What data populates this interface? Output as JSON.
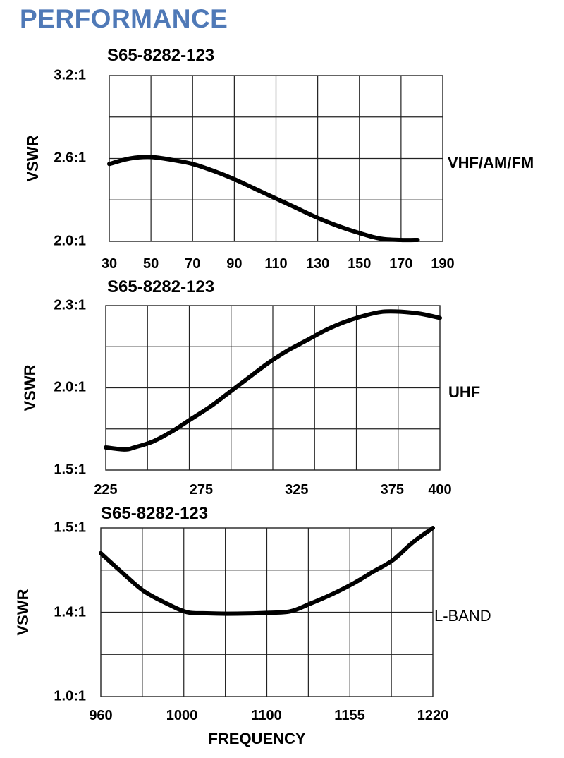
{
  "page": {
    "title": "PERFORMANCE"
  },
  "chart_data": [
    {
      "type": "line",
      "title": "S65-8282-123",
      "ylabel": "VSWR",
      "band_label": "VHF/AM/FM",
      "xlabel": "",
      "x_ticks": [
        "30",
        "50",
        "70",
        "90",
        "110",
        "130",
        "150",
        "170",
        "190"
      ],
      "y_ticks": [
        "2.0:1",
        "2.6:1",
        "3.2:1"
      ],
      "xlim": [
        30,
        190
      ],
      "ylim": [
        2.0,
        3.2
      ],
      "grid": true,
      "series": [
        {
          "x": [
            30,
            40,
            50,
            60,
            70,
            80,
            90,
            100,
            110,
            120,
            130,
            140,
            150,
            160,
            170,
            178
          ],
          "y": [
            2.56,
            2.6,
            2.61,
            2.59,
            2.56,
            2.51,
            2.45,
            2.38,
            2.31,
            2.24,
            2.17,
            2.11,
            2.06,
            2.02,
            2.01,
            2.01
          ]
        }
      ]
    },
    {
      "type": "line",
      "title": "S65-8282-123",
      "ylabel": "VSWR",
      "band_label": "UHF",
      "xlabel": "",
      "x_ticks": [
        "225",
        "275",
        "325",
        "375",
        "400"
      ],
      "y_ticks": [
        "1.5:1",
        "2.0:1",
        "2.3:1"
      ],
      "x_tick_values": [
        225,
        275,
        325,
        375,
        400
      ],
      "xlim": [
        225,
        400
      ],
      "ylim": [
        1.5,
        2.3
      ],
      "grid": true,
      "series": [
        {
          "x": [
            225,
            235,
            240,
            250,
            260,
            270,
            280,
            290,
            300,
            310,
            320,
            330,
            340,
            350,
            360,
            370,
            380,
            390,
            400
          ],
          "y": [
            1.61,
            1.6,
            1.61,
            1.64,
            1.69,
            1.75,
            1.81,
            1.88,
            1.95,
            2.02,
            2.08,
            2.13,
            2.18,
            2.22,
            2.25,
            2.27,
            2.27,
            2.26,
            2.24
          ]
        }
      ]
    },
    {
      "type": "line",
      "title": "S65-8282-123",
      "ylabel": "VSWR",
      "band_label": "L-BAND",
      "xlabel": "FREQUENCY",
      "x_ticks": [
        "960",
        "1000",
        "1100",
        "1155",
        "1220"
      ],
      "y_ticks": [
        "1.0:1",
        "1.4:1",
        "1.5:1"
      ],
      "x_tick_positions": [
        0,
        0.25,
        0.5,
        0.75,
        1
      ],
      "x": [
        0,
        0.07,
        0.13,
        0.2,
        0.26,
        0.32,
        0.38,
        0.44,
        0.5,
        0.57,
        0.63,
        0.7,
        0.76,
        0.82,
        0.88,
        0.94,
        1.0
      ],
      "y": [
        1.47,
        1.445,
        1.425,
        1.41,
        1.4,
        1.395,
        1.393,
        1.394,
        1.397,
        1.401,
        1.41,
        1.422,
        1.434,
        1.448,
        1.462,
        1.483,
        1.5
      ],
      "grid": true
    }
  ]
}
